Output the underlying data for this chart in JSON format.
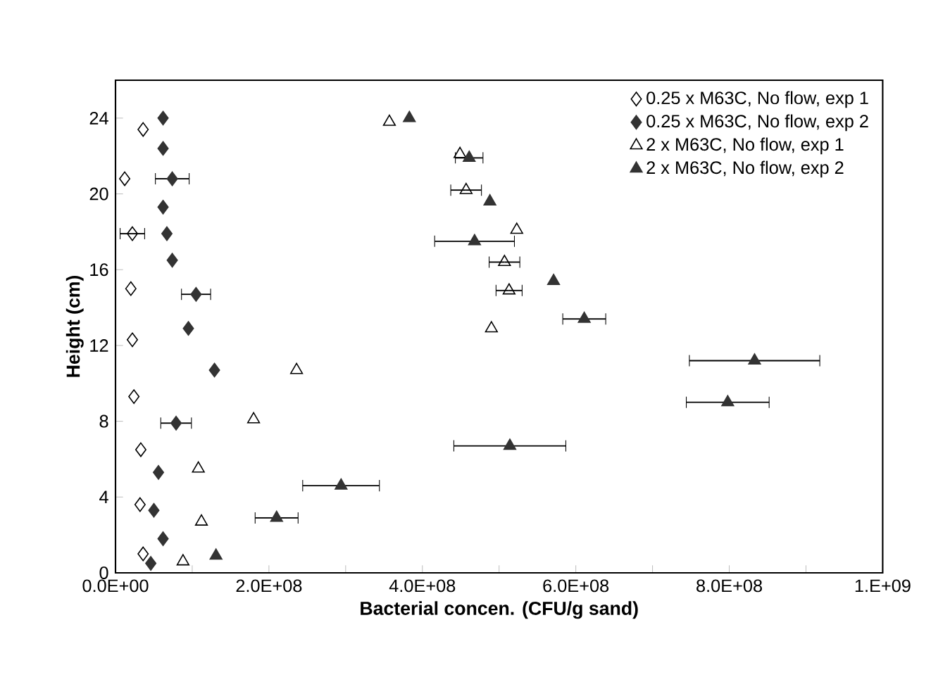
{
  "chart_data": {
    "type": "scatter",
    "xlabel": "Bacterial concen. (CFU/g sand)",
    "ylabel": "Height (cm)",
    "xlim": [
      0,
      1000000000
    ],
    "ylim": [
      0,
      26
    ],
    "xticks": [
      {
        "value": 0,
        "label": "0.0E+00"
      },
      {
        "value": 100000000,
        "label": null
      },
      {
        "value": 200000000,
        "label": "2.0E+08"
      },
      {
        "value": 300000000,
        "label": null
      },
      {
        "value": 400000000,
        "label": "4.0E+08"
      },
      {
        "value": 500000000,
        "label": null
      },
      {
        "value": 600000000,
        "label": "6.0E+08"
      },
      {
        "value": 700000000,
        "label": null
      },
      {
        "value": 800000000,
        "label": "8.0E+08"
      },
      {
        "value": 900000000,
        "label": null
      },
      {
        "value": 1000000000,
        "label": "1.E+09"
      }
    ],
    "yticks": [
      0,
      4,
      8,
      12,
      16,
      20,
      24
    ],
    "legend": "top right",
    "series": [
      {
        "name": "0.25 x M63C, No flow, exp 1",
        "marker": "diamond",
        "color": "#000000",
        "x": [
          36000000,
          12000000,
          22000000,
          20000000,
          22000000,
          24000000,
          33000000,
          32000000,
          36000000
        ],
        "values": [
          23.4,
          20.8,
          17.9,
          15.0,
          12.3,
          9.3,
          6.5,
          3.6,
          1.0
        ],
        "xerrors": [
          null,
          null,
          16000000,
          null,
          null,
          null,
          null,
          null,
          null
        ]
      },
      {
        "name": "0.25 x M63C, No flow, exp 2",
        "marker": "diamond",
        "color": "#333333",
        "x": [
          62000000,
          62000000,
          74000000,
          62000000,
          67000000,
          74000000,
          105000000,
          95000000,
          129000000,
          79000000,
          56000000,
          50000000,
          62000000,
          46000000
        ],
        "values": [
          24.0,
          22.4,
          20.8,
          19.3,
          17.9,
          16.5,
          14.7,
          12.9,
          10.7,
          7.9,
          5.3,
          3.3,
          1.8,
          0.5
        ],
        "xerrors": [
          null,
          null,
          22000000,
          null,
          null,
          null,
          19000000,
          null,
          null,
          20000000,
          null,
          null,
          null,
          null
        ]
      },
      {
        "name": "2 x M63C, No flow, exp 1",
        "marker": "triangle",
        "color": "#000000",
        "x": [
          357000000,
          449000000,
          457000000,
          523000000,
          507000000,
          513000000,
          490000000,
          236000000,
          180000000,
          108000000,
          112000000,
          88000000
        ],
        "values": [
          23.8,
          22.1,
          20.2,
          18.1,
          16.4,
          14.9,
          12.9,
          10.7,
          8.1,
          5.5,
          2.7,
          0.6
        ],
        "xerrors": [
          null,
          null,
          20000000,
          null,
          20000000,
          17000000,
          null,
          null,
          null,
          null,
          null,
          null
        ]
      },
      {
        "name": "2 x M63C, No flow, exp 2",
        "marker": "triangle",
        "color": "#333333",
        "x": [
          383000000,
          461000000,
          488000000,
          468000000,
          571000000,
          611000000,
          833000000,
          798000000,
          514000000,
          294000000,
          210000000,
          131000000
        ],
        "values": [
          24.0,
          21.9,
          19.6,
          17.5,
          15.4,
          13.4,
          11.2,
          9.0,
          6.7,
          4.6,
          2.9,
          0.9
        ],
        "xerrors": [
          null,
          18000000,
          null,
          52000000,
          null,
          28000000,
          85000000,
          54000000,
          73000000,
          50000000,
          28000000,
          null
        ]
      }
    ]
  }
}
